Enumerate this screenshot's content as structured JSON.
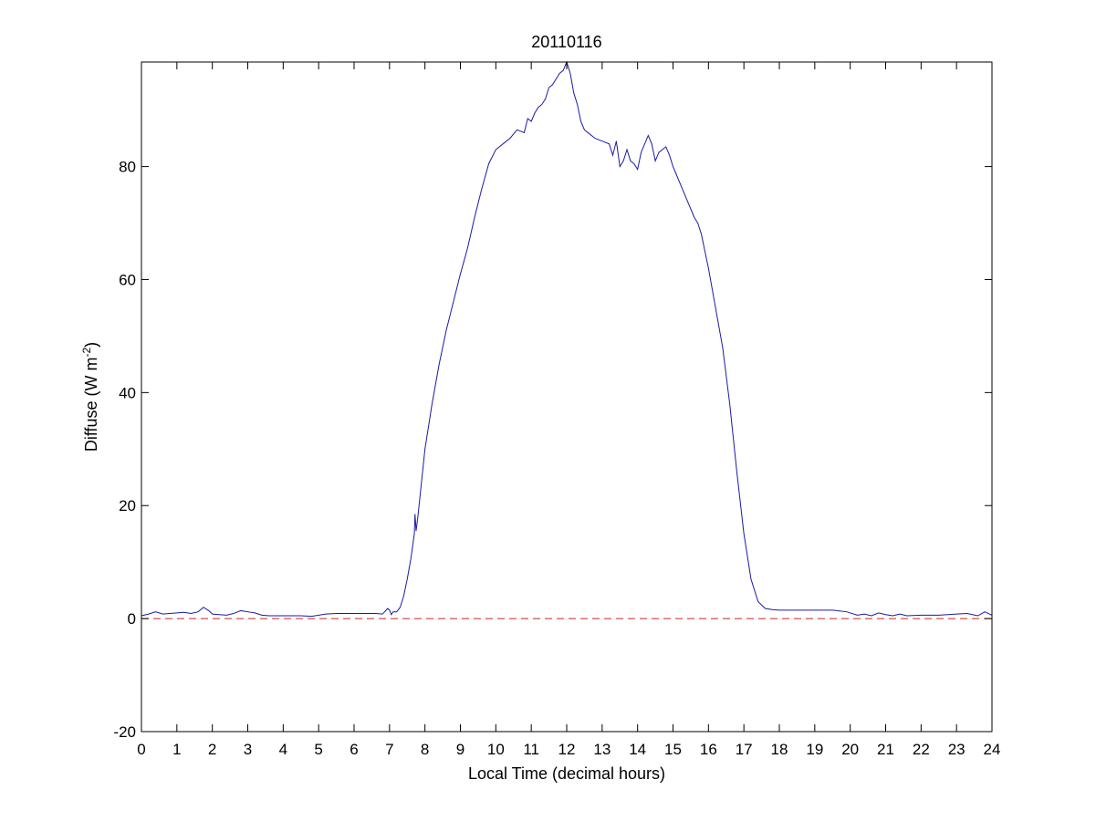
{
  "chart_data": {
    "type": "line",
    "title": "20110116",
    "xlabel": "Local Time (decimal hours)",
    "ylabel": {
      "main": "Diffuse (W m",
      "superscript": "-2",
      "close": ")"
    },
    "xlim": [
      0,
      24
    ],
    "ylim": [
      -20,
      98.5
    ],
    "xticks": [
      0,
      1,
      2,
      3,
      4,
      5,
      6,
      7,
      8,
      9,
      10,
      11,
      12,
      13,
      14,
      15,
      16,
      17,
      18,
      19,
      20,
      21,
      22,
      23,
      24
    ],
    "xtick_labels": [
      "0",
      "1",
      "2",
      "3",
      "4",
      "5",
      "6",
      "7",
      "8",
      "9",
      "10",
      "11",
      "12",
      "13",
      "14",
      "15",
      "16",
      "17",
      "18",
      "19",
      "20",
      "21",
      "22",
      "23",
      "24"
    ],
    "yticks": [
      -20,
      0,
      20,
      40,
      60,
      80
    ],
    "ytick_labels": [
      "-20",
      "0",
      "20",
      "40",
      "60",
      "80"
    ],
    "grid": false,
    "legend": "none",
    "series": [
      {
        "color": "#1a1aa6",
        "style": "solid",
        "x": [
          0.0,
          0.2,
          0.4,
          0.6,
          0.8,
          1.0,
          1.2,
          1.4,
          1.6,
          1.75,
          1.9,
          2.0,
          2.2,
          2.4,
          2.6,
          2.8,
          3.0,
          3.2,
          3.4,
          3.6,
          3.8,
          4.0,
          4.2,
          4.5,
          4.8,
          5.0,
          5.2,
          5.5,
          5.8,
          6.0,
          6.3,
          6.6,
          6.8,
          6.95,
          7.0,
          7.05,
          7.1,
          7.2,
          7.3,
          7.4,
          7.5,
          7.6,
          7.7,
          7.72,
          7.75,
          7.8,
          7.9,
          8.0,
          8.2,
          8.4,
          8.6,
          8.8,
          9.0,
          9.2,
          9.4,
          9.6,
          9.8,
          10.0,
          10.2,
          10.4,
          10.6,
          10.8,
          10.9,
          11.0,
          11.1,
          11.2,
          11.3,
          11.4,
          11.5,
          11.6,
          11.7,
          11.8,
          11.9,
          12.0,
          12.1,
          12.2,
          12.3,
          12.4,
          12.5,
          12.6,
          12.8,
          13.0,
          13.2,
          13.3,
          13.4,
          13.5,
          13.6,
          13.7,
          13.8,
          13.9,
          14.0,
          14.1,
          14.2,
          14.3,
          14.4,
          14.5,
          14.6,
          14.7,
          14.8,
          14.9,
          15.0,
          15.1,
          15.2,
          15.3,
          15.4,
          15.5,
          15.6,
          15.7,
          15.8,
          16.0,
          16.2,
          16.4,
          16.6,
          16.8,
          17.0,
          17.2,
          17.4,
          17.6,
          17.8,
          18.0,
          18.5,
          19.0,
          19.5,
          19.9,
          20.0,
          20.2,
          20.4,
          20.6,
          20.8,
          21.0,
          21.2,
          21.4,
          21.6,
          22.0,
          22.5,
          23.0,
          23.3,
          23.6,
          23.8,
          24.0
        ],
        "y": [
          0.5,
          0.8,
          1.2,
          0.8,
          0.9,
          1.0,
          1.1,
          0.9,
          1.2,
          2.0,
          1.4,
          0.8,
          0.7,
          0.6,
          0.9,
          1.4,
          1.2,
          1.0,
          0.6,
          0.5,
          0.5,
          0.5,
          0.5,
          0.5,
          0.4,
          0.6,
          0.8,
          0.9,
          0.9,
          0.9,
          0.9,
          0.9,
          0.8,
          1.8,
          1.5,
          0.7,
          1.2,
          1.2,
          2.0,
          4.0,
          7.0,
          10.5,
          15.0,
          18.5,
          15.5,
          18.0,
          24.0,
          30.0,
          38.0,
          45.0,
          51.0,
          56.0,
          61.0,
          65.5,
          71.0,
          76.0,
          80.5,
          83.0,
          84.0,
          85.0,
          86.5,
          86.0,
          88.5,
          88.0,
          89.5,
          90.5,
          91.0,
          92.0,
          94.0,
          94.5,
          95.5,
          96.5,
          97.0,
          98.5,
          96.5,
          93.0,
          91.0,
          88.0,
          86.5,
          86.0,
          85.0,
          84.5,
          84.0,
          82.0,
          84.5,
          80.0,
          81.0,
          83.0,
          81.0,
          80.5,
          79.5,
          82.5,
          84.0,
          85.5,
          84.0,
          81.0,
          82.5,
          83.0,
          83.5,
          82.0,
          80.0,
          78.5,
          77.0,
          75.5,
          74.0,
          72.5,
          71.0,
          70.0,
          68.0,
          62.0,
          55.0,
          48.0,
          38.0,
          26.0,
          15.0,
          7.0,
          3.0,
          1.8,
          1.6,
          1.5,
          1.5,
          1.5,
          1.5,
          1.2,
          1.0,
          0.6,
          0.8,
          0.5,
          1.0,
          0.7,
          0.5,
          0.8,
          0.5,
          0.6,
          0.6,
          0.8,
          0.9,
          0.5,
          1.2,
          0.6
        ]
      },
      {
        "color": "#cc2222",
        "style": "dashed",
        "x": [
          0,
          24
        ],
        "y": [
          0,
          0
        ]
      }
    ]
  }
}
